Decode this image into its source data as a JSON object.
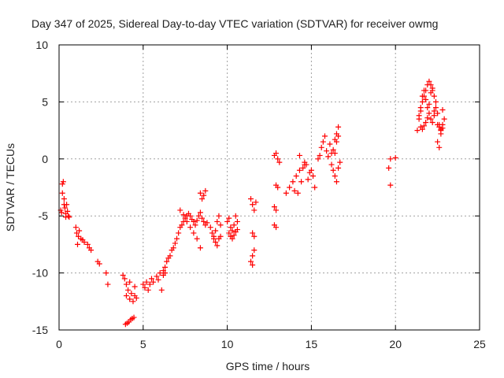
{
  "chart_data": {
    "type": "scatter",
    "title": "Day 347 of 2025, Sidereal Day-to-day VTEC variation (SDTVAR) for receiver owmg",
    "xlabel": "GPS time / hours",
    "ylabel": "SDTVAR / TECUs",
    "xlim": [
      0,
      25
    ],
    "ylim": [
      -15,
      10
    ],
    "xticks": [
      0,
      5,
      10,
      15,
      20,
      25
    ],
    "yticks": [
      -15,
      -10,
      -5,
      0,
      5,
      10
    ],
    "xtick_labels": [
      "0",
      "5",
      "10",
      "15",
      "20",
      "25"
    ],
    "ytick_labels": [
      "-15",
      "-10",
      "-5",
      "0",
      "5",
      "10"
    ],
    "grid": true,
    "marker": "plus",
    "color": "#ff0000",
    "series": [
      {
        "name": "SDTVAR",
        "x": [
          0.1,
          0.15,
          0.2,
          0.2,
          0.25,
          0.3,
          0.3,
          0.35,
          0.4,
          0.4,
          0.45,
          0.5,
          0.55,
          0.6,
          1.0,
          1.05,
          1.1,
          1.15,
          1.2,
          1.3,
          1.4,
          1.5,
          1.7,
          1.8,
          1.9,
          2.3,
          2.4,
          2.8,
          2.9,
          3.8,
          3.9,
          4.0,
          4.0,
          4.1,
          4.2,
          4.2,
          4.3,
          4.4,
          4.5,
          4.5,
          4.6,
          3.95,
          4.05,
          4.15,
          4.25,
          4.35,
          4.45,
          5.0,
          5.1,
          5.2,
          5.3,
          5.4,
          5.5,
          5.6,
          5.8,
          5.9,
          6.0,
          6.1,
          6.2,
          6.3,
          6.2,
          6.3,
          6.4,
          6.5,
          6.6,
          6.7,
          6.8,
          6.9,
          7.0,
          7.1,
          7.2,
          7.3,
          7.4,
          7.5,
          7.6,
          7.7,
          7.8,
          7.9,
          8.0,
          8.1,
          8.2,
          8.3,
          8.4,
          8.5,
          8.6,
          8.7,
          8.8,
          7.2,
          7.4,
          7.6,
          7.8,
          8.0,
          8.2,
          8.4,
          8.4,
          8.5,
          8.6,
          8.7,
          9.0,
          9.1,
          9.2,
          9.3,
          9.4,
          9.5,
          9.6,
          9.2,
          9.3,
          9.4,
          9.5,
          9.6,
          10.0,
          10.1,
          10.2,
          10.3,
          10.4,
          10.5,
          10.6,
          10.1,
          10.2,
          10.3,
          10.4,
          10.5,
          10.6,
          11.4,
          11.5,
          11.6,
          11.7,
          11.5,
          11.6,
          11.5,
          11.6,
          11.4,
          11.5,
          12.8,
          12.9,
          13.0,
          13.1,
          12.9,
          13.0,
          12.8,
          12.9,
          12.8,
          12.9,
          13.5,
          13.7,
          13.9,
          14.1,
          14.3,
          14.5,
          14.7,
          14.9,
          15.1,
          14.2,
          14.4,
          14.6,
          14.8,
          15.0,
          15.2,
          14.0,
          14.3,
          14.6,
          15.4,
          15.5,
          15.6,
          15.7,
          15.8,
          15.9,
          16.0,
          16.1,
          16.2,
          16.3,
          16.4,
          16.5,
          16.6,
          16.2,
          16.3,
          16.4,
          16.5,
          16.6,
          16.7,
          16.4,
          16.5,
          16.6,
          19.6,
          19.7,
          19.7,
          20.0,
          21.3,
          21.4,
          21.5,
          21.6,
          21.7,
          21.8,
          21.9,
          22.0,
          22.1,
          22.2,
          22.3,
          22.4,
          22.5,
          22.6,
          22.7,
          22.8,
          22.9,
          21.4,
          21.5,
          21.6,
          21.7,
          21.8,
          21.9,
          22.0,
          22.1,
          22.2,
          22.3,
          22.4,
          22.5,
          22.6,
          22.7,
          22.8,
          21.5,
          21.6,
          21.7,
          21.8,
          21.9,
          22.0,
          22.1,
          22.2,
          22.3,
          22.5,
          22.6,
          22.7,
          22.8
        ],
        "y": [
          -4.5,
          -4.7,
          -3.0,
          -2.2,
          -2.0,
          -4.0,
          -3.5,
          -4.3,
          -4.8,
          -5.1,
          -4.0,
          -4.6,
          -5.0,
          -5.1,
          -6.0,
          -6.5,
          -7.5,
          -6.8,
          -6.3,
          -7.0,
          -7.1,
          -7.3,
          -7.5,
          -7.8,
          -8.0,
          -9.0,
          -9.2,
          -10.0,
          -11.0,
          -10.2,
          -10.5,
          -11.0,
          -12.0,
          -11.5,
          -12.3,
          -10.8,
          -11.8,
          -12.5,
          -12.0,
          -11.2,
          -12.2,
          -14.5,
          -14.4,
          -14.3,
          -14.1,
          -14.0,
          -13.9,
          -11.0,
          -11.3,
          -10.8,
          -11.5,
          -11.0,
          -10.5,
          -10.8,
          -10.3,
          -10.6,
          -10.0,
          -11.5,
          -10.2,
          -10.0,
          -9.8,
          -9.5,
          -9.0,
          -8.7,
          -8.5,
          -8.0,
          -7.8,
          -7.4,
          -7.0,
          -6.5,
          -6.0,
          -5.8,
          -5.5,
          -5.2,
          -5.0,
          -4.8,
          -5.0,
          -5.3,
          -5.5,
          -5.8,
          -5.4,
          -5.0,
          -4.7,
          -5.2,
          -5.5,
          -5.8,
          -5.6,
          -4.5,
          -4.9,
          -5.5,
          -6.0,
          -6.5,
          -7.0,
          -7.8,
          -3.0,
          -3.5,
          -3.2,
          -2.8,
          -6.0,
          -6.5,
          -6.8,
          -6.3,
          -5.5,
          -5.0,
          -5.8,
          -7.0,
          -7.3,
          -7.6,
          -7.0,
          -6.8,
          -5.5,
          -5.2,
          -6.0,
          -6.3,
          -5.8,
          -5.0,
          -5.5,
          -6.5,
          -6.8,
          -7.0,
          -6.7,
          -6.4,
          -6.2,
          -3.5,
          -4.0,
          -4.5,
          -3.8,
          -6.5,
          -6.8,
          -8.5,
          -8.0,
          -9.0,
          -9.3,
          0.3,
          0.5,
          0.0,
          -0.3,
          -2.3,
          -2.5,
          -4.2,
          -4.5,
          -5.8,
          -6.0,
          -3.0,
          -2.5,
          -2.0,
          -1.5,
          -1.0,
          -0.8,
          -0.5,
          -1.2,
          -1.5,
          -3.0,
          -2.0,
          -0.5,
          -1.8,
          -1.0,
          -2.5,
          -2.8,
          0.3,
          -0.3,
          0.0,
          0.3,
          1.0,
          1.5,
          2.0,
          0.7,
          0.2,
          1.3,
          0.5,
          0.8,
          1.7,
          2.2,
          2.8,
          -0.5,
          -1.0,
          -1.5,
          -2.0,
          -0.8,
          -0.3,
          0.5,
          1.5,
          2.0,
          -0.8,
          0.0,
          -2.3,
          0.1,
          2.5,
          3.5,
          4.5,
          5.0,
          5.5,
          6.0,
          6.5,
          6.8,
          6.5,
          6.0,
          5.5,
          5.0,
          4.0,
          3.0,
          2.5,
          3.0,
          3.5,
          3.8,
          4.2,
          5.5,
          6.0,
          5.2,
          4.5,
          4.0,
          3.5,
          3.2,
          3.8,
          4.5,
          3.0,
          2.8,
          2.6,
          2.7,
          2.8,
          2.6,
          2.9,
          3.2,
          3.6,
          4.8,
          5.8,
          6.2,
          4.2,
          1.5,
          1.0,
          2.2,
          4.3
        ]
      }
    ]
  }
}
